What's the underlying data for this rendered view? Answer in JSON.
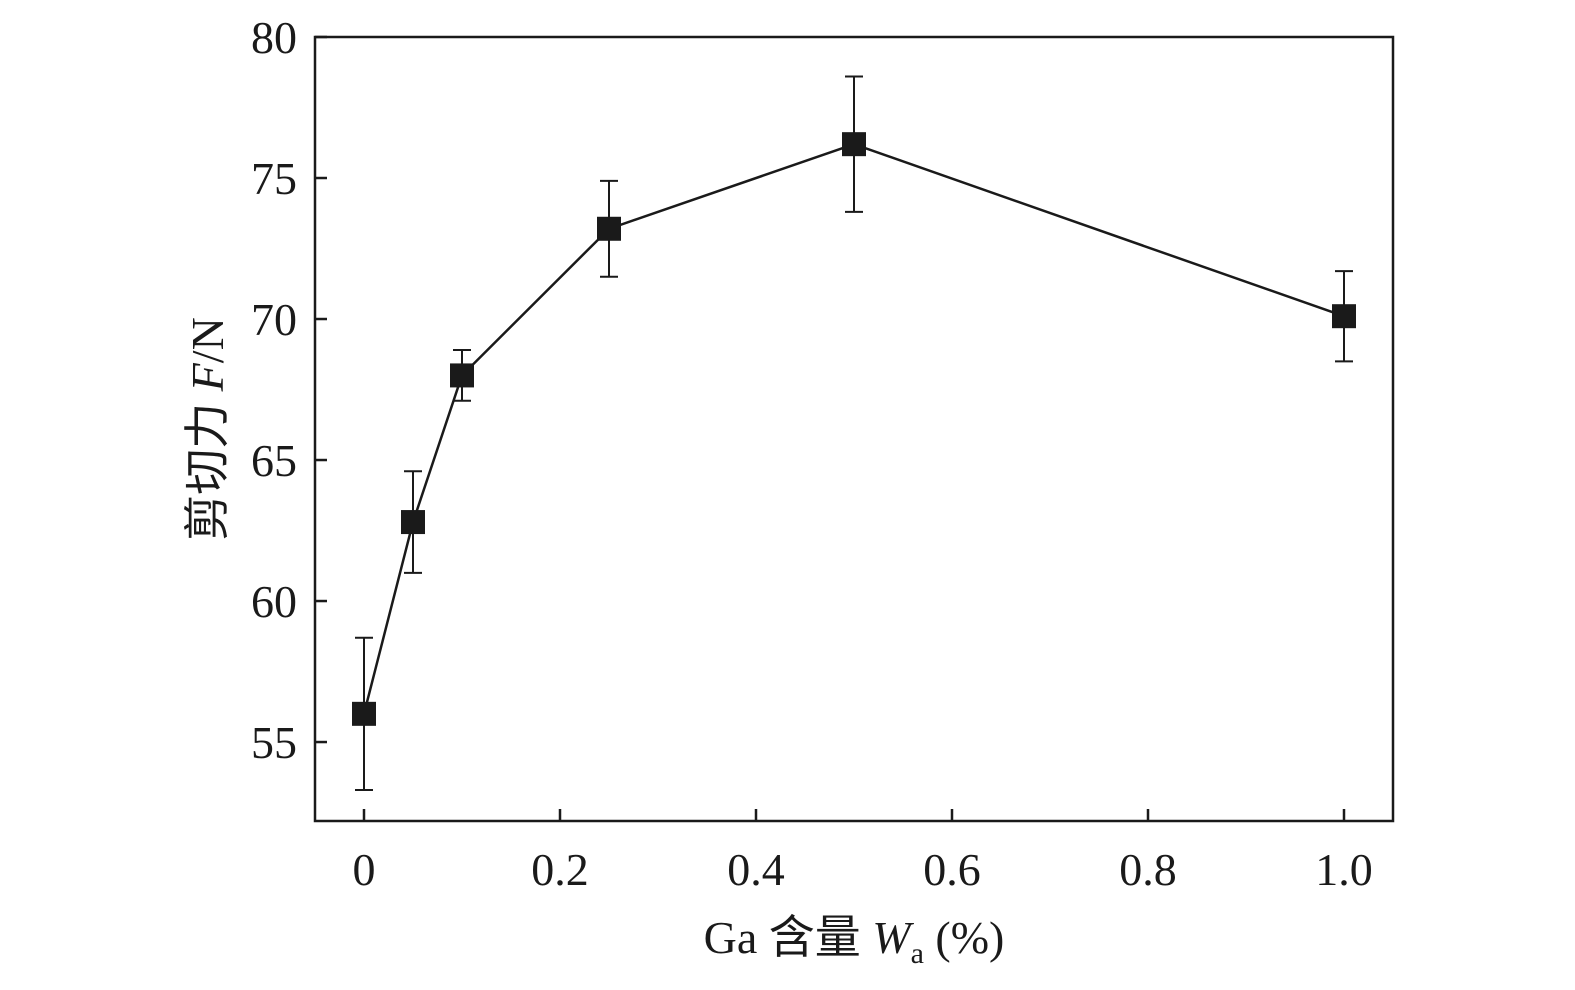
{
  "chart_data": {
    "type": "line",
    "title": "",
    "x": [
      0,
      0.05,
      0.1,
      0.25,
      0.5,
      1.0
    ],
    "series": [
      {
        "values": [
          56.0,
          62.8,
          68.0,
          73.2,
          76.2,
          70.1
        ],
        "error": [
          2.7,
          1.8,
          0.9,
          1.7,
          2.4,
          1.6
        ]
      }
    ],
    "xlim": [
      -0.05,
      1.05
    ],
    "ylim": [
      52.2,
      80
    ],
    "x_ticks": [
      0,
      0.2,
      0.4,
      0.6,
      0.8,
      1.0
    ],
    "x_tick_labels": [
      "0",
      "0.2",
      "0.4",
      "0.6",
      "0.8",
      "1.0"
    ],
    "y_ticks": [
      55,
      60,
      65,
      70,
      75,
      80
    ],
    "y_tick_labels": [
      "55",
      "60",
      "65",
      "70",
      "75",
      "80"
    ],
    "xlabel": {
      "prefix": "Ga 含量 ",
      "symbol": "W",
      "subscript": "a",
      "suffix": " (%)"
    },
    "ylabel": {
      "prefix": "剪切力 ",
      "symbol": "F",
      "suffix": "/N"
    },
    "grid": false,
    "marker": "square",
    "color": "#1a1a1a"
  }
}
